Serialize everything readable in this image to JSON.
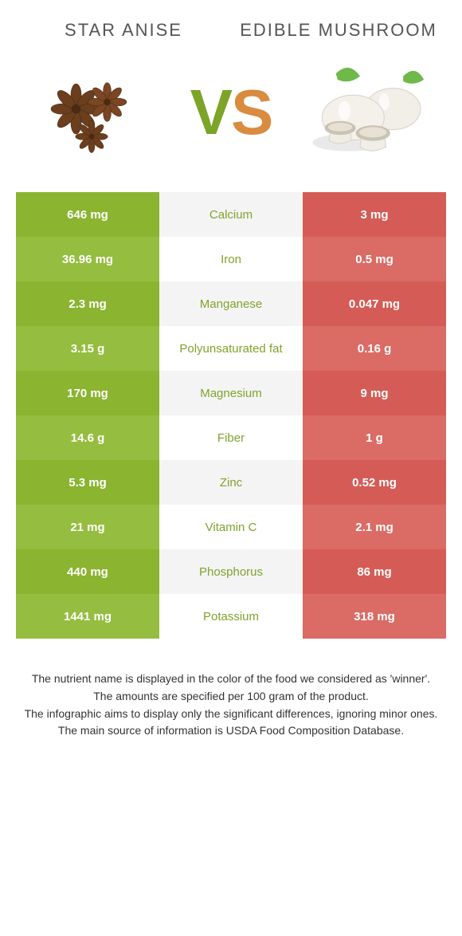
{
  "header": {
    "left": "Star Anise",
    "right": "Edible Mushroom",
    "vs_v": "V",
    "vs_s": "S"
  },
  "palette": {
    "left_a": "#8bb430",
    "left_b": "#95bd3f",
    "mid_a": "#f4f4f4",
    "mid_b": "#ffffff",
    "right_a": "#d55c56",
    "right_b": "#da6b65",
    "nutrient_left_color": "#7fa32b",
    "nutrient_right_color": "#c9524c"
  },
  "rows": [
    {
      "left": "646 mg",
      "name": "Calcium",
      "right": "3 mg",
      "win": "left"
    },
    {
      "left": "36.96 mg",
      "name": "Iron",
      "right": "0.5 mg",
      "win": "left"
    },
    {
      "left": "2.3 mg",
      "name": "Manganese",
      "right": "0.047 mg",
      "win": "left"
    },
    {
      "left": "3.15 g",
      "name": "Polyunsaturated fat",
      "right": "0.16 g",
      "win": "left"
    },
    {
      "left": "170 mg",
      "name": "Magnesium",
      "right": "9 mg",
      "win": "left"
    },
    {
      "left": "14.6 g",
      "name": "Fiber",
      "right": "1 g",
      "win": "left"
    },
    {
      "left": "5.3 mg",
      "name": "Zinc",
      "right": "0.52 mg",
      "win": "left"
    },
    {
      "left": "21 mg",
      "name": "Vitamin C",
      "right": "2.1 mg",
      "win": "left"
    },
    {
      "left": "440 mg",
      "name": "Phosphorus",
      "right": "86 mg",
      "win": "left"
    },
    {
      "left": "1441 mg",
      "name": "Potassium",
      "right": "318 mg",
      "win": "left"
    }
  ],
  "footer": {
    "l1": "The nutrient name is displayed in the color of the food we considered as 'winner'.",
    "l2": "The amounts are specified per 100 gram of the product.",
    "l3": "The infographic aims to display only the significant differences, ignoring minor ones.",
    "l4": "The main source of information is USDA Food Composition Database."
  }
}
